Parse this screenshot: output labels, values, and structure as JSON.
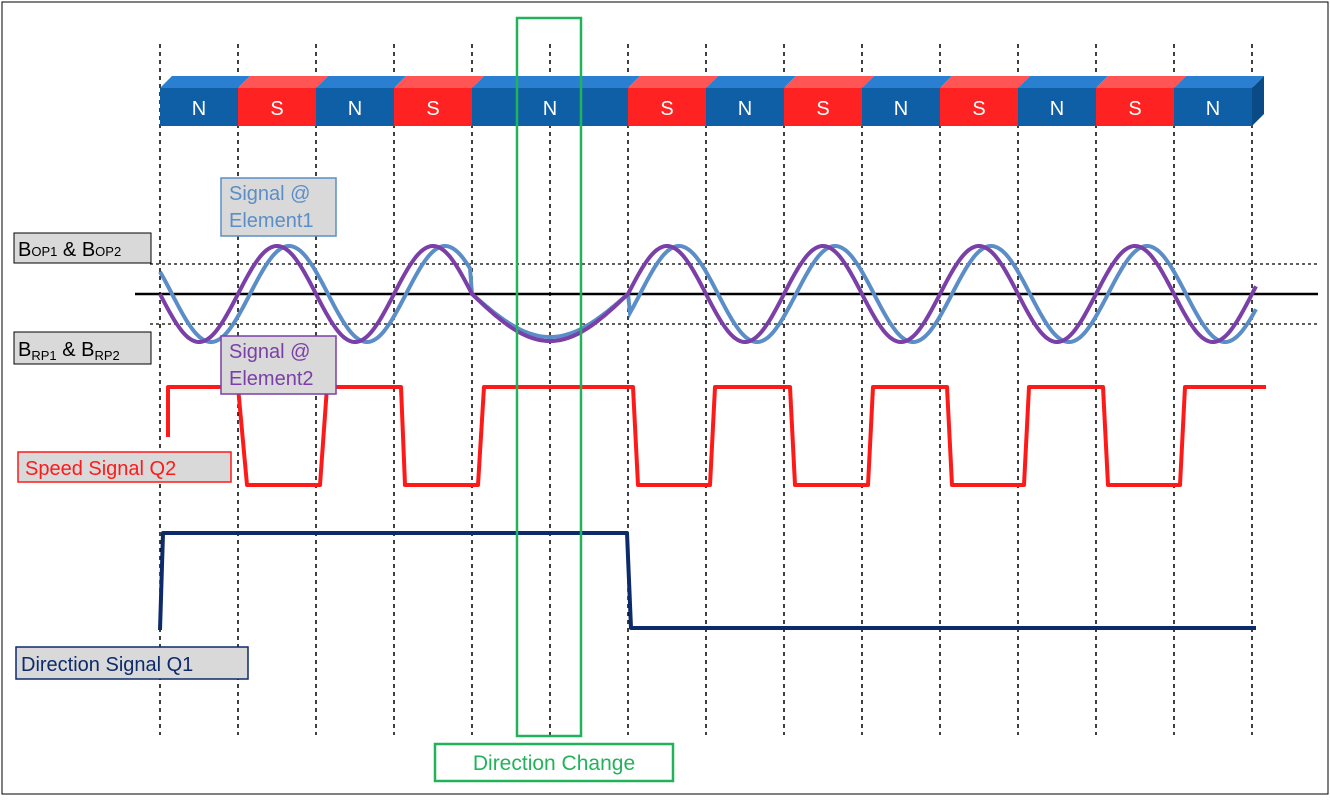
{
  "magnet_poles": [
    "N",
    "S",
    "N",
    "S",
    "N",
    "S",
    "N",
    "S",
    "N",
    "S",
    "N",
    "S",
    "N"
  ],
  "labels": {
    "signal_element1": [
      "Signal @",
      "Element1"
    ],
    "signal_element2": [
      "Signal @",
      "Element2"
    ],
    "threshold_op": {
      "base1": "B",
      "sub1": "OP1",
      "mid": " & B",
      "sub2": "OP2"
    },
    "threshold_rp": {
      "base1": "B",
      "sub1": "RP1",
      "mid": " & B",
      "sub2": "RP2"
    },
    "speed_signal": "Speed Signal Q2",
    "direction_signal": "Direction Signal Q1",
    "direction_change": "Direction Change"
  },
  "colors": {
    "north": "#0f5fa6",
    "north_top": "#2a7fd0",
    "south": "#ff2222",
    "south_top": "#ff5555",
    "element1": "#5b8ec8",
    "element2": "#7b3fa8",
    "speed": "#ff1a1a",
    "direction": "#0d2a6b",
    "highlight": "#22b35a"
  }
}
